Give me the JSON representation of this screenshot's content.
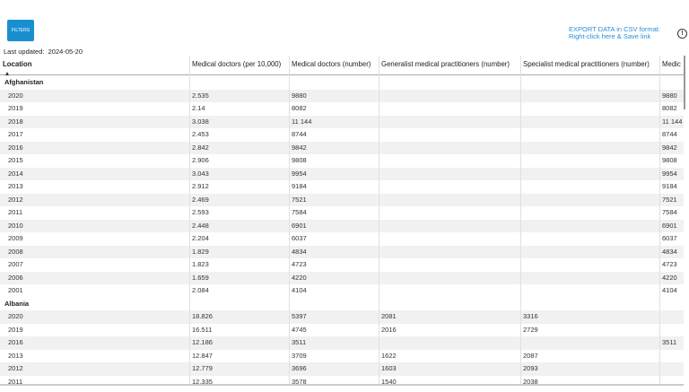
{
  "toolbar": {
    "filters": "FILTERS",
    "export_line1": "EXPORT DATA in CSV format:",
    "export_line2": "Right-click here & Save link",
    "last_updated_label": "Last updated:",
    "last_updated": "2024-05-20"
  },
  "table": {
    "columns": [
      "Location",
      "Medical doctors (per 10,000)",
      "Medical doctors (number)",
      "Generalist medical practitioners (number)",
      "Specialist medical practitioners (number)",
      "Medic"
    ],
    "groups": [
      {
        "name": "Afghanistan",
        "rows": [
          [
            "2020",
            "2.535",
            "9880",
            null,
            null,
            "9880"
          ],
          [
            "2019",
            "2.14",
            "8082",
            null,
            null,
            "8082"
          ],
          [
            "2018",
            "3.038",
            "11 144",
            null,
            null,
            "11 144"
          ],
          [
            "2017",
            "2.453",
            "8744",
            null,
            null,
            "8744"
          ],
          [
            "2016",
            "2.842",
            "9842",
            null,
            null,
            "9842"
          ],
          [
            "2015",
            "2.906",
            "9808",
            null,
            null,
            "9808"
          ],
          [
            "2014",
            "3.043",
            "9954",
            null,
            null,
            "9954"
          ],
          [
            "2013",
            "2.912",
            "9184",
            null,
            null,
            "9184"
          ],
          [
            "2012",
            "2.469",
            "7521",
            null,
            null,
            "7521"
          ],
          [
            "2011",
            "2.593",
            "7584",
            null,
            null,
            "7584"
          ],
          [
            "2010",
            "2.448",
            "6901",
            null,
            null,
            "6901"
          ],
          [
            "2009",
            "2.204",
            "6037",
            null,
            null,
            "6037"
          ],
          [
            "2008",
            "1.829",
            "4834",
            null,
            null,
            "4834"
          ],
          [
            "2007",
            "1.823",
            "4723",
            null,
            null,
            "4723"
          ],
          [
            "2006",
            "1.659",
            "4220",
            null,
            null,
            "4220"
          ],
          [
            "2001",
            "2.084",
            "4104",
            null,
            null,
            "4104"
          ]
        ]
      },
      {
        "name": "Albania",
        "rows": [
          [
            "2020",
            "18.826",
            "5397",
            "2081",
            "3316",
            null
          ],
          [
            "2019",
            "16.511",
            "4745",
            "2016",
            "2729",
            null
          ],
          [
            "2016",
            "12.186",
            "3511",
            null,
            null,
            "3511"
          ],
          [
            "2013",
            "12.847",
            "3709",
            "1622",
            "2087",
            null
          ],
          [
            "2012",
            "12.779",
            "3696",
            "1603",
            "2093",
            null
          ],
          [
            "2011",
            "12.335",
            "3578",
            "1540",
            "2038",
            null
          ]
        ]
      }
    ]
  }
}
